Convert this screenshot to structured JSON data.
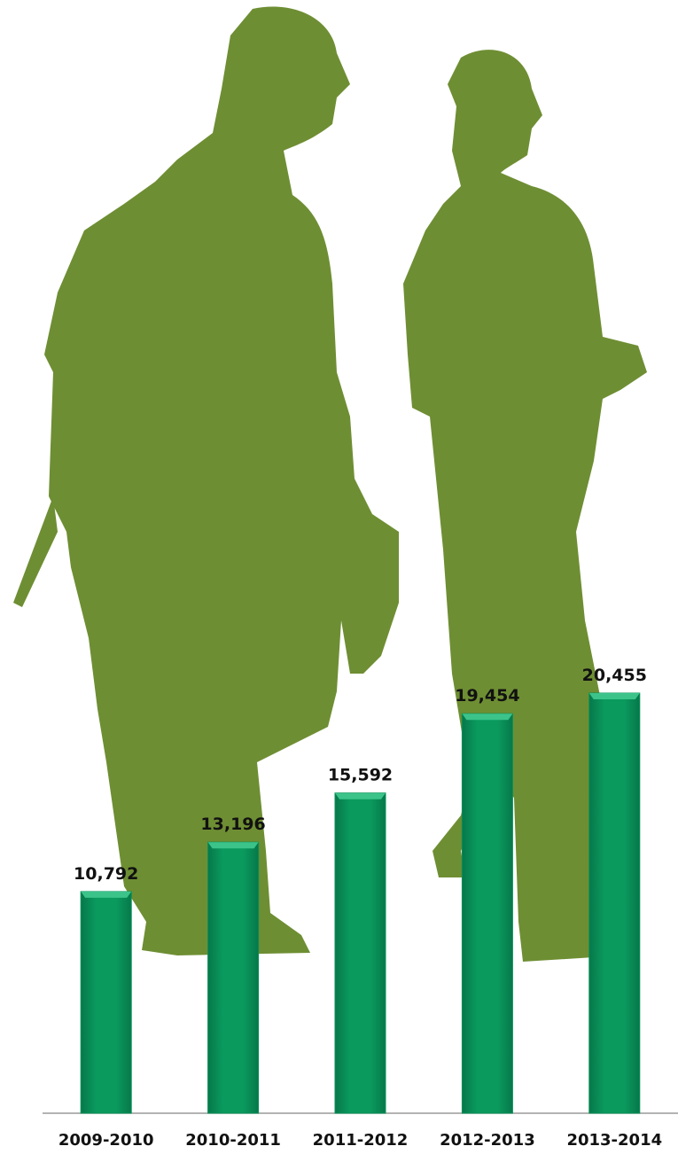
{
  "chart_data": {
    "type": "bar",
    "categories": [
      "2009-2010",
      "2010-2011",
      "2011-2012",
      "2012-2013",
      "2013-2014"
    ],
    "values": [
      10792,
      13196,
      15592,
      19454,
      20455
    ],
    "value_labels": [
      "10,792",
      "13,196",
      "15,592",
      "19,454",
      "20,455"
    ],
    "color": "#088f57"
  }
}
